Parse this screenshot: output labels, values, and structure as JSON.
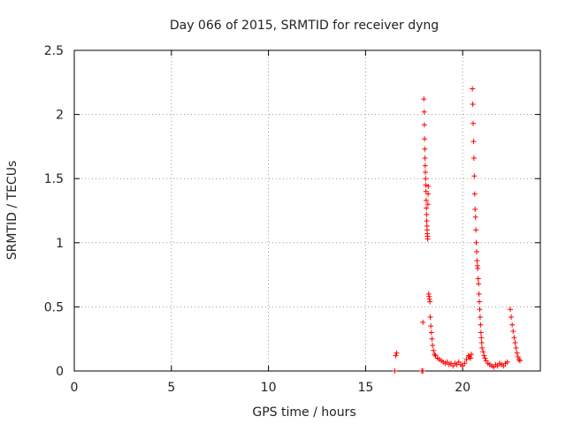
{
  "chart_data": {
    "type": "scatter",
    "title": "Day 066 of 2015, SRMTID for receiver dyng",
    "xlabel": "GPS time / hours",
    "ylabel": "SRMTID / TECUs",
    "xlim": [
      0,
      24
    ],
    "ylim": [
      0,
      2.5
    ],
    "x_ticks": [
      0,
      5,
      10,
      15,
      20
    ],
    "x_tick_labels": [
      "0",
      "5",
      "10",
      "15",
      "20"
    ],
    "y_ticks": [
      0,
      0.5,
      1,
      1.5,
      2,
      2.5
    ],
    "y_tick_labels": [
      "0",
      "0.5",
      "1",
      "1.5",
      "2",
      "2.5"
    ],
    "grid": true,
    "marker": "+",
    "series": [
      {
        "name": "SRMTID",
        "color": "#ff0000",
        "points": [
          [
            16.5,
            0.0
          ],
          [
            16.55,
            0.12
          ],
          [
            16.6,
            0.14
          ],
          [
            17.9,
            0.0
          ],
          [
            17.95,
            0.0
          ],
          [
            17.95,
            0.38
          ],
          [
            18.0,
            2.12
          ],
          [
            18.02,
            2.02
          ],
          [
            18.03,
            1.92
          ],
          [
            18.04,
            1.81
          ],
          [
            18.05,
            1.73
          ],
          [
            18.06,
            1.66
          ],
          [
            18.07,
            1.6
          ],
          [
            18.08,
            1.55
          ],
          [
            18.09,
            1.5
          ],
          [
            18.1,
            1.45
          ],
          [
            18.11,
            1.4
          ],
          [
            18.12,
            1.33
          ],
          [
            18.13,
            1.27
          ],
          [
            18.14,
            1.22
          ],
          [
            18.15,
            1.17
          ],
          [
            18.16,
            1.13
          ],
          [
            18.17,
            1.1
          ],
          [
            18.18,
            1.07
          ],
          [
            18.19,
            1.05
          ],
          [
            18.2,
            1.03
          ],
          [
            18.21,
            1.3
          ],
          [
            18.22,
            1.38
          ],
          [
            18.23,
            1.44
          ],
          [
            18.25,
            0.6
          ],
          [
            18.27,
            0.58
          ],
          [
            18.29,
            0.56
          ],
          [
            18.31,
            0.54
          ],
          [
            18.33,
            0.42
          ],
          [
            18.36,
            0.35
          ],
          [
            18.39,
            0.3
          ],
          [
            18.42,
            0.25
          ],
          [
            18.45,
            0.2
          ],
          [
            18.5,
            0.16
          ],
          [
            18.55,
            0.13
          ],
          [
            18.6,
            0.12
          ],
          [
            18.7,
            0.1
          ],
          [
            18.8,
            0.09
          ],
          [
            18.9,
            0.08
          ],
          [
            19.0,
            0.07
          ],
          [
            19.1,
            0.06
          ],
          [
            19.2,
            0.07
          ],
          [
            19.3,
            0.05
          ],
          [
            19.4,
            0.06
          ],
          [
            19.5,
            0.04
          ],
          [
            19.6,
            0.06
          ],
          [
            19.7,
            0.05
          ],
          [
            19.8,
            0.07
          ],
          [
            19.9,
            0.05
          ],
          [
            20.0,
            0.04
          ],
          [
            20.1,
            0.06
          ],
          [
            20.2,
            0.09
          ],
          [
            20.3,
            0.12
          ],
          [
            20.35,
            0.11
          ],
          [
            20.4,
            0.1
          ],
          [
            20.45,
            0.13
          ],
          [
            20.5,
            2.2
          ],
          [
            20.52,
            2.08
          ],
          [
            20.54,
            1.93
          ],
          [
            20.56,
            1.79
          ],
          [
            20.58,
            1.66
          ],
          [
            20.6,
            1.52
          ],
          [
            20.62,
            1.38
          ],
          [
            20.64,
            1.26
          ],
          [
            20.66,
            1.2
          ],
          [
            20.68,
            1.1
          ],
          [
            20.7,
            1.0
          ],
          [
            20.72,
            0.93
          ],
          [
            20.74,
            0.86
          ],
          [
            20.76,
            0.82
          ],
          [
            20.78,
            0.8
          ],
          [
            20.8,
            0.72
          ],
          [
            20.82,
            0.68
          ],
          [
            20.84,
            0.6
          ],
          [
            20.86,
            0.54
          ],
          [
            20.88,
            0.48
          ],
          [
            20.9,
            0.42
          ],
          [
            20.92,
            0.36
          ],
          [
            20.94,
            0.3
          ],
          [
            20.96,
            0.26
          ],
          [
            20.98,
            0.22
          ],
          [
            21.0,
            0.18
          ],
          [
            21.05,
            0.15
          ],
          [
            21.1,
            0.12
          ],
          [
            21.15,
            0.1
          ],
          [
            21.2,
            0.08
          ],
          [
            21.3,
            0.06
          ],
          [
            21.4,
            0.05
          ],
          [
            21.5,
            0.04
          ],
          [
            21.6,
            0.03
          ],
          [
            21.7,
            0.05
          ],
          [
            21.8,
            0.04
          ],
          [
            21.9,
            0.06
          ],
          [
            22.0,
            0.05
          ],
          [
            22.1,
            0.04
          ],
          [
            22.2,
            0.06
          ],
          [
            22.3,
            0.07
          ],
          [
            22.45,
            0.48
          ],
          [
            22.5,
            0.42
          ],
          [
            22.55,
            0.36
          ],
          [
            22.6,
            0.31
          ],
          [
            22.65,
            0.26
          ],
          [
            22.7,
            0.22
          ],
          [
            22.75,
            0.18
          ],
          [
            22.8,
            0.14
          ],
          [
            22.85,
            0.11
          ],
          [
            22.9,
            0.09
          ],
          [
            22.95,
            0.08
          ]
        ]
      }
    ]
  }
}
